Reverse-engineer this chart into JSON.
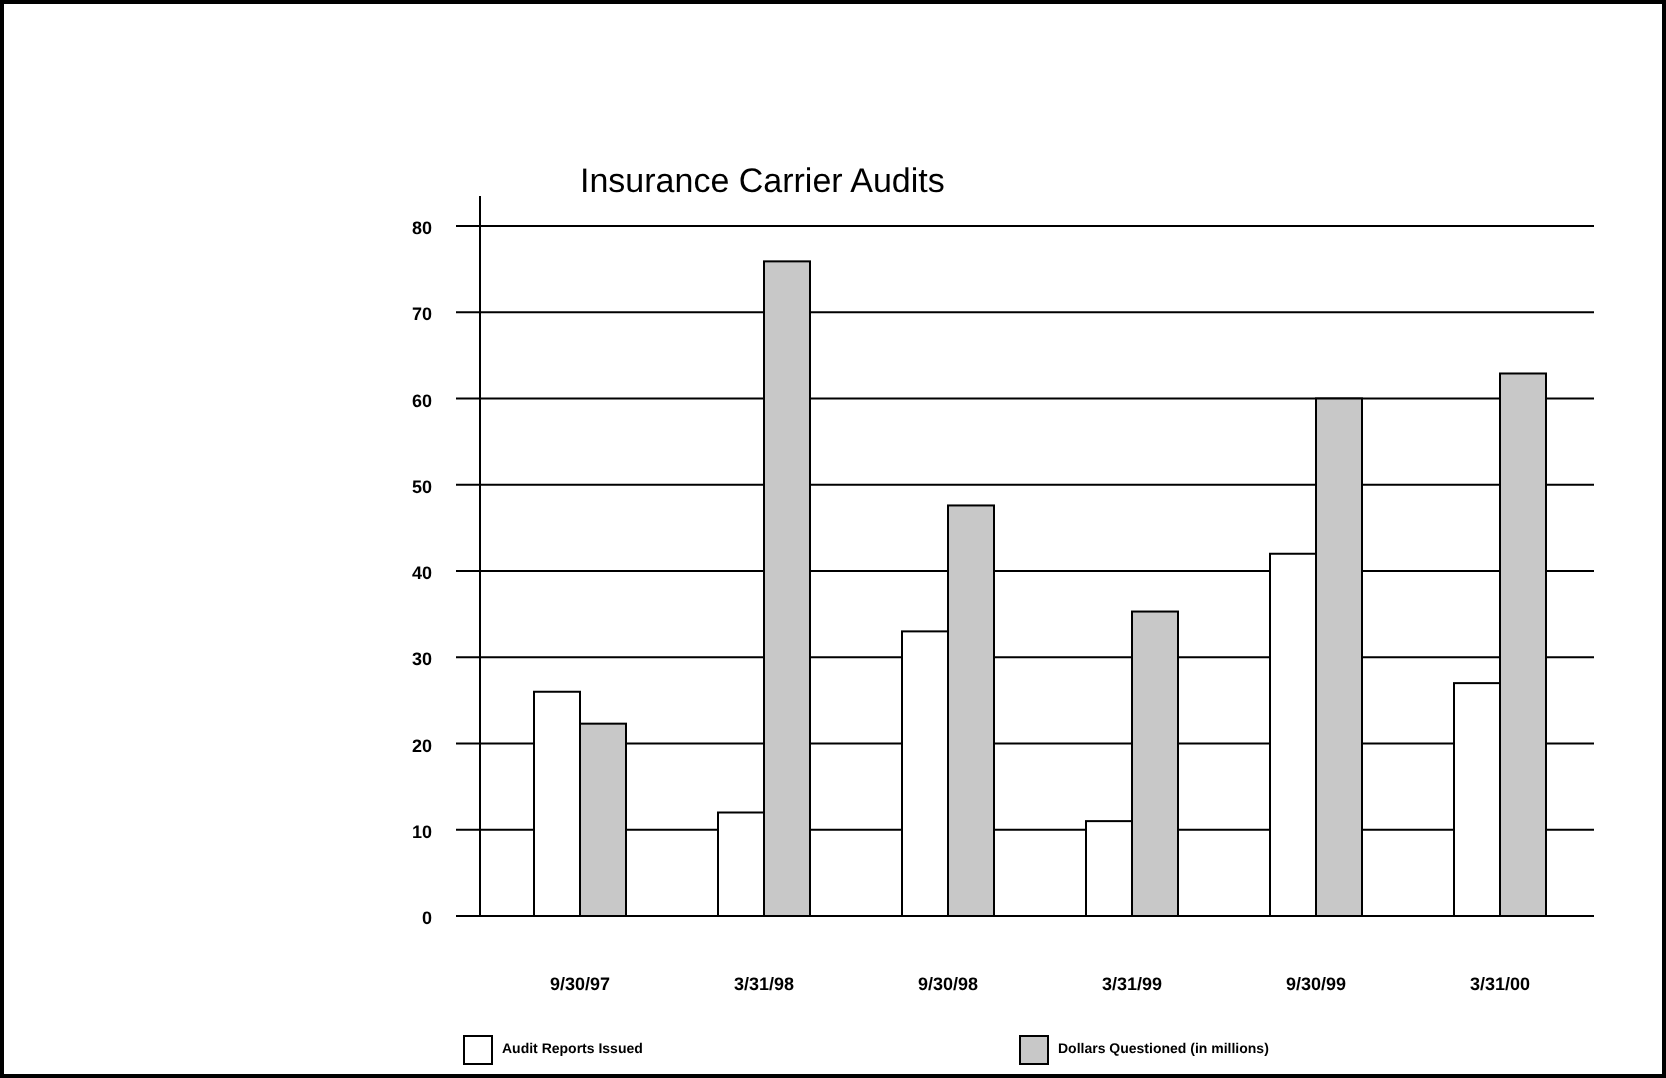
{
  "chart_data": {
    "type": "bar",
    "title": "Insurance Carrier Audits",
    "categories": [
      "9/30/97",
      "3/31/98",
      "9/30/98",
      "3/31/99",
      "9/30/99",
      "3/31/00"
    ],
    "series": [
      {
        "name": "Audit Reports Issued",
        "color": "#ffffff",
        "values": [
          26,
          12,
          33,
          11,
          42,
          27
        ]
      },
      {
        "name": "Dollars Questioned (in millions)",
        "color": "#c8c8c8",
        "values": [
          22.3,
          75.9,
          47.6,
          35.3,
          60,
          62.9
        ]
      }
    ],
    "ylim": [
      0,
      80
    ],
    "yticks": [
      0,
      10,
      20,
      30,
      40,
      50,
      60,
      70,
      80
    ],
    "grid": "y",
    "legend": "bottom"
  }
}
